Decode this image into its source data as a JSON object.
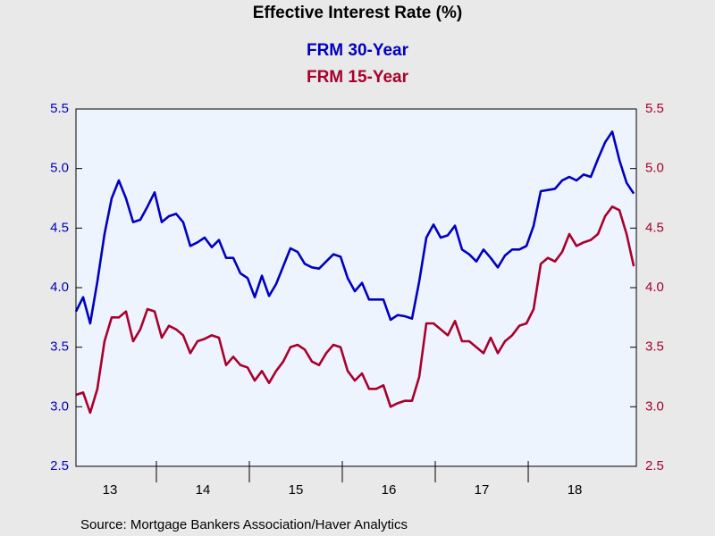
{
  "chart_data": {
    "type": "line",
    "title": "Effective Interest Rate (%)",
    "source": "Source:  Mortgage Bankers Association/Haver Analytics",
    "x": [
      2013.135,
      2013.212,
      2013.288,
      2013.365,
      2013.442,
      2013.519,
      2013.596,
      2013.673,
      2013.75,
      2013.827,
      2013.904,
      2013.981,
      2014.058,
      2014.135,
      2014.212,
      2014.288,
      2014.365,
      2014.442,
      2014.519,
      2014.596,
      2014.673,
      2014.75,
      2014.827,
      2014.904,
      2014.981,
      2015.058,
      2015.135,
      2015.212,
      2015.288,
      2015.365,
      2015.442,
      2015.519,
      2015.596,
      2015.673,
      2015.75,
      2015.827,
      2015.904,
      2015.981,
      2016.058,
      2016.135,
      2016.212,
      2016.288,
      2016.365,
      2016.442,
      2016.519,
      2016.596,
      2016.673,
      2016.75,
      2016.827,
      2016.904,
      2016.981,
      2017.058,
      2017.135,
      2017.212,
      2017.288,
      2017.365,
      2017.442,
      2017.519,
      2017.596,
      2017.673,
      2017.75,
      2017.827,
      2017.904,
      2017.981,
      2018.058,
      2018.135,
      2018.212,
      2018.288,
      2018.365,
      2018.442,
      2018.519,
      2018.596,
      2018.673,
      2018.75,
      2018.827,
      2018.904,
      2018.981,
      2019.058,
      2019.135
    ],
    "series": [
      {
        "name": "FRM 30-Year",
        "color": "#0000c0",
        "axis": "y",
        "values": [
          3.8,
          3.92,
          3.7,
          4.05,
          4.45,
          4.75,
          4.9,
          4.75,
          4.55,
          4.57,
          4.68,
          4.8,
          4.55,
          4.6,
          4.62,
          4.55,
          4.35,
          4.38,
          4.42,
          4.34,
          4.4,
          4.25,
          4.25,
          4.12,
          4.08,
          3.92,
          4.1,
          3.93,
          4.03,
          4.18,
          4.33,
          4.3,
          4.2,
          4.17,
          4.16,
          4.22,
          4.28,
          4.26,
          4.08,
          3.97,
          4.04,
          3.9,
          3.9,
          3.9,
          3.73,
          3.77,
          3.76,
          3.74,
          4.05,
          4.42,
          4.53,
          4.42,
          4.44,
          4.52,
          4.32,
          4.28,
          4.22,
          4.32,
          4.25,
          4.17,
          4.27,
          4.32,
          4.32,
          4.35,
          4.52,
          4.81,
          4.82,
          4.83,
          4.9,
          4.93,
          4.9,
          4.95,
          4.93,
          5.08,
          5.22,
          5.31,
          5.07,
          4.88,
          4.79
        ]
      },
      {
        "name": "FRM 15-Year",
        "color": "#a8002c",
        "axis": "y2",
        "values": [
          3.1,
          3.12,
          2.95,
          3.15,
          3.55,
          3.75,
          3.75,
          3.8,
          3.55,
          3.65,
          3.82,
          3.8,
          3.58,
          3.68,
          3.65,
          3.6,
          3.45,
          3.55,
          3.57,
          3.6,
          3.58,
          3.35,
          3.42,
          3.35,
          3.33,
          3.22,
          3.3,
          3.2,
          3.3,
          3.38,
          3.5,
          3.52,
          3.48,
          3.38,
          3.35,
          3.45,
          3.52,
          3.5,
          3.3,
          3.22,
          3.28,
          3.15,
          3.15,
          3.18,
          3.0,
          3.03,
          3.05,
          3.05,
          3.25,
          3.7,
          3.7,
          3.65,
          3.6,
          3.72,
          3.55,
          3.55,
          3.5,
          3.45,
          3.58,
          3.45,
          3.55,
          3.6,
          3.68,
          3.7,
          3.82,
          4.2,
          4.25,
          4.22,
          4.3,
          4.45,
          4.35,
          4.38,
          4.4,
          4.45,
          4.6,
          4.68,
          4.65,
          4.45,
          4.18
        ]
      }
    ],
    "xlim": [
      2013.135,
      2019.163
    ],
    "xticks": [
      {
        "value": 2013,
        "label": "13"
      },
      {
        "value": 2014,
        "label": "14"
      },
      {
        "value": 2015,
        "label": "15"
      },
      {
        "value": 2016,
        "label": "16"
      },
      {
        "value": 2017,
        "label": "17"
      },
      {
        "value": 2018,
        "label": "18"
      }
    ],
    "ylim": [
      2.5,
      5.5
    ],
    "yticks": [
      2.5,
      {
        "value": 3,
        "label": "3.0"
      },
      3.5,
      {
        "value": 4,
        "label": "4.0"
      },
      4.5,
      {
        "value": 5,
        "label": "5.0"
      },
      5.5
    ],
    "y2lim": [
      2.5,
      5.5
    ],
    "y2ticks": [
      2.5,
      {
        "value": 3,
        "label": "3.0"
      },
      3.5,
      {
        "value": 4,
        "label": "4.0"
      },
      4.5,
      {
        "value": 5,
        "label": "5.0"
      },
      5.5
    ],
    "grid": false
  }
}
